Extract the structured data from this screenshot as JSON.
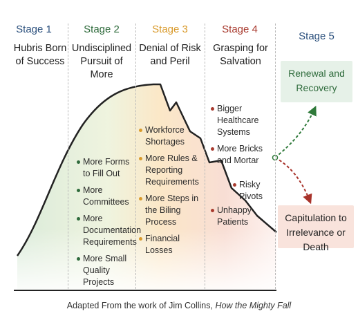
{
  "stages": [
    {
      "label": "Stage 1",
      "title": "Hubris Born of Success",
      "color": "#2a4f7c"
    },
    {
      "label": "Stage 2",
      "title": "Undisciplined Pursuit of More",
      "color": "#2f6b3c"
    },
    {
      "label": "Stage 3",
      "title": "Denial of Risk and Peril",
      "color": "#d99a2b"
    },
    {
      "label": "Stage 4",
      "title": "Grasping for Salvation",
      "color": "#a83a2e"
    },
    {
      "label": "Stage 5",
      "title": "",
      "color": "#2a4f7c"
    }
  ],
  "stage2_bullets": [
    "More Forms to Fill Out",
    "More Committees",
    "More Documentation Requirements",
    "More Small Quality Projects"
  ],
  "stage3_bullets": [
    "Workforce Shortages",
    "More Rules & Reporting Requirements",
    "More Steps in the Biling Process",
    "Financial Losses"
  ],
  "stage4_bullets": [
    "Bigger Healthcare Systems",
    "More Bricks and Mortar",
    "Unhappy Patients"
  ],
  "risky_pivots": "Risky Pivots",
  "outcomes": {
    "renewal": "Renewal and Recovery",
    "capitulation": "Capitulation to Irrelevance or Death"
  },
  "footer": {
    "prefix": "Adapted From the work of Jim Collins, ",
    "book": "How the Mighty Fall"
  },
  "colors": {
    "curve": "#222222",
    "green_dot": "#2f6b3c",
    "orange_dot": "#d99a2b",
    "red_dot": "#a83a2e",
    "renewal_bg": "#e6f1e8",
    "capitulation_bg": "#f9e3dc",
    "green_arrow": "#2f7a3a",
    "red_arrow": "#a8322a"
  }
}
